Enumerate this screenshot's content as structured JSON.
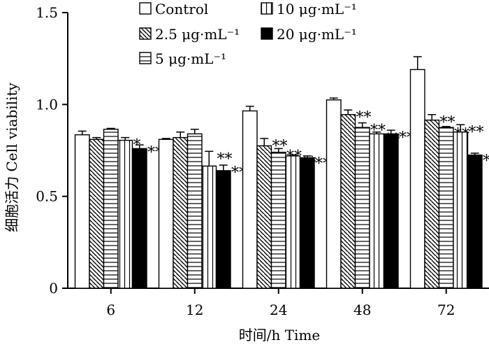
{
  "chart_data": {
    "type": "bar",
    "title": "",
    "xlabel": "时间/h Time",
    "ylabel": "细胞活力 Cell viability",
    "ylim": [
      0,
      1.5
    ],
    "yticks": [
      "0",
      "0.5",
      "1.0",
      "1.5"
    ],
    "categories": [
      "6",
      "12",
      "24",
      "48",
      "72"
    ],
    "grid": false,
    "legend_position": "top",
    "series": [
      {
        "name": "Control",
        "pattern": "open",
        "values": [
          0.835,
          0.81,
          0.965,
          1.025,
          1.19
        ],
        "errors": [
          0.02,
          0.005,
          0.025,
          0.01,
          0.07
        ],
        "significance": [
          "",
          "",
          "",
          "",
          ""
        ]
      },
      {
        "name": "2.5 μg·mL⁻¹",
        "pattern": "diagonal",
        "values": [
          0.81,
          0.82,
          0.775,
          0.945,
          0.915
        ],
        "errors": [
          0.01,
          0.03,
          0.04,
          0.025,
          0.03
        ],
        "significance": [
          "",
          "",
          "**",
          "**",
          "**"
        ]
      },
      {
        "name": "5 μg·mL⁻¹",
        "pattern": "horizontal",
        "values": [
          0.865,
          0.84,
          0.74,
          0.875,
          0.875
        ],
        "errors": [
          0.005,
          0.025,
          0.02,
          0.025,
          0.005
        ],
        "significance": [
          "",
          "",
          "**",
          "**",
          "**"
        ]
      },
      {
        "name": "10 μg·mL⁻¹",
        "pattern": "vertical",
        "values": [
          0.805,
          0.665,
          0.72,
          0.84,
          0.85
        ],
        "errors": [
          0.015,
          0.08,
          0.005,
          0.01,
          0.04
        ],
        "significance": [
          "*",
          "**",
          "**",
          "**",
          "**"
        ]
      },
      {
        "name": "20 μg·mL⁻¹",
        "pattern": "solid",
        "values": [
          0.76,
          0.64,
          0.71,
          0.84,
          0.725
        ],
        "errors": [
          0.02,
          0.03,
          0.01,
          0.02,
          0.01
        ],
        "significance": [
          "**",
          "**",
          "**",
          "**",
          "**"
        ]
      }
    ]
  }
}
